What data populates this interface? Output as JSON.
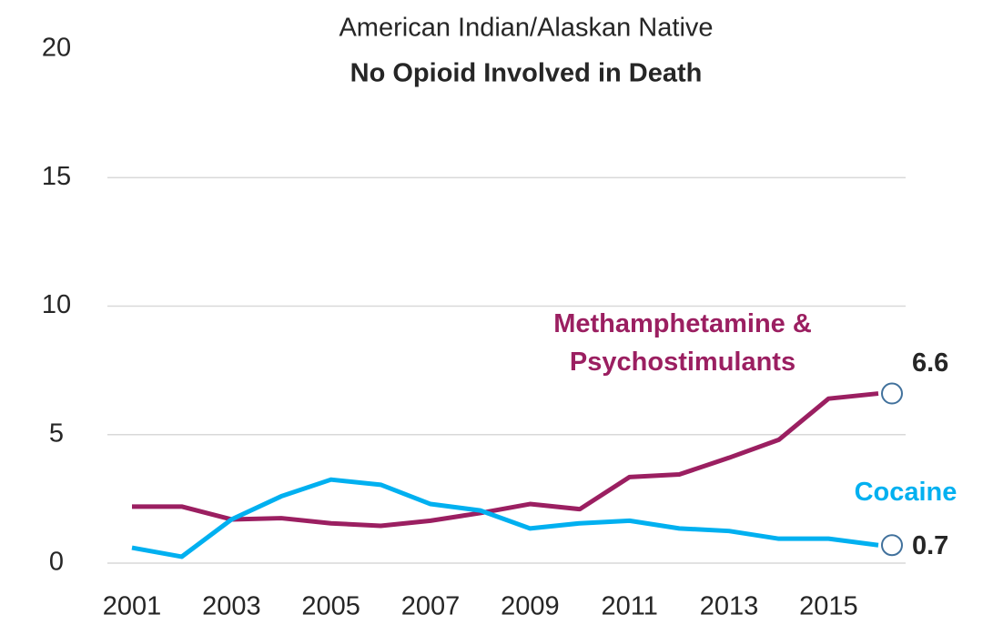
{
  "chart_data": {
    "type": "line",
    "title": "American Indian/Alaskan Native",
    "subtitle": "No Opioid Involved in Death",
    "x": [
      2001,
      2002,
      2003,
      2004,
      2005,
      2006,
      2007,
      2008,
      2009,
      2010,
      2011,
      2012,
      2013,
      2014,
      2015,
      2016
    ],
    "xlim": [
      2001,
      2016
    ],
    "xticks": [
      2001,
      2003,
      2005,
      2007,
      2009,
      2011,
      2013,
      2015
    ],
    "ylim": [
      0,
      20
    ],
    "yticks": [
      0,
      5,
      10,
      15,
      20
    ],
    "grid": true,
    "series": [
      {
        "name": "Methamphetamine & Psychostimulants",
        "color": "#9b1f61",
        "values": [
          2.2,
          2.2,
          1.7,
          1.75,
          1.55,
          1.45,
          1.65,
          1.95,
          2.3,
          2.1,
          3.35,
          3.45,
          4.1,
          4.8,
          6.4,
          6.6
        ]
      },
      {
        "name": "Cocaine",
        "color": "#00b0f0",
        "values": [
          0.6,
          0.25,
          1.7,
          2.6,
          3.25,
          3.05,
          2.3,
          2.05,
          1.35,
          1.55,
          1.65,
          1.35,
          1.25,
          0.95,
          0.95,
          0.7
        ]
      }
    ],
    "marker_color": "#41719c"
  }
}
